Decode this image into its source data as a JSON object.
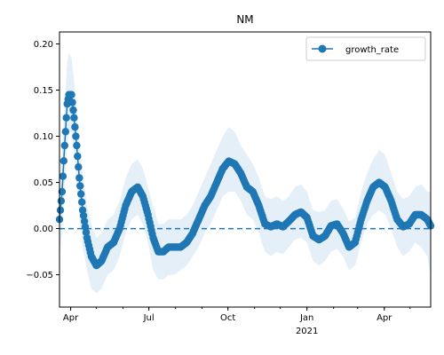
{
  "chart_data": {
    "type": "line",
    "title": "NM",
    "xlabel": "",
    "ylabel": "",
    "x_range": [
      "2020-03-19",
      "2021-05-25"
    ],
    "ylim": [
      -0.085,
      0.213
    ],
    "y_ticks": [
      -0.05,
      0.0,
      0.05,
      0.1,
      0.15,
      0.2
    ],
    "y_tick_labels": [
      "−0.05",
      "0.00",
      "0.05",
      "0.10",
      "0.15",
      "0.20"
    ],
    "x_major_ticks": [
      {
        "date": "2020-04-01",
        "label": "Apr"
      },
      {
        "date": "2020-07-01",
        "label": "Jul"
      },
      {
        "date": "2020-10-01",
        "label": "Oct"
      },
      {
        "date": "2021-01-01",
        "label": "Jan"
      },
      {
        "date": "2021-04-01",
        "label": "Apr"
      }
    ],
    "x_year_label": {
      "date": "2021-01-01",
      "label": "2021"
    },
    "reference_line": {
      "y": 0.0,
      "style": "dashed",
      "color": "#1f77b4"
    },
    "legend": {
      "position": "top-right",
      "entries": [
        "growth_rate"
      ]
    },
    "grid": false,
    "colors": {
      "line": "#1f77b4",
      "band": "#dce9f5"
    },
    "series": [
      {
        "name": "growth_rate",
        "x": [
          "2020-03-19",
          "2020-03-22",
          "2020-03-25",
          "2020-03-28",
          "2020-03-30",
          "2020-04-02",
          "2020-04-05",
          "2020-04-08",
          "2020-04-11",
          "2020-04-15",
          "2020-04-20",
          "2020-04-25",
          "2020-05-01",
          "2020-05-07",
          "2020-05-14",
          "2020-05-21",
          "2020-05-28",
          "2020-06-04",
          "2020-06-11",
          "2020-06-18",
          "2020-06-24",
          "2020-06-30",
          "2020-07-06",
          "2020-07-12",
          "2020-07-18",
          "2020-07-24",
          "2020-07-31",
          "2020-08-07",
          "2020-08-14",
          "2020-08-21",
          "2020-08-28",
          "2020-09-04",
          "2020-09-11",
          "2020-09-18",
          "2020-09-25",
          "2020-10-02",
          "2020-10-09",
          "2020-10-16",
          "2020-10-23",
          "2020-10-30",
          "2020-11-06",
          "2020-11-13",
          "2020-11-20",
          "2020-11-27",
          "2020-12-04",
          "2020-12-11",
          "2020-12-18",
          "2020-12-25",
          "2021-01-01",
          "2021-01-08",
          "2021-01-15",
          "2021-01-22",
          "2021-01-29",
          "2021-02-05",
          "2021-02-12",
          "2021-02-19",
          "2021-02-26",
          "2021-03-05",
          "2021-03-12",
          "2021-03-19",
          "2021-03-26",
          "2021-04-02",
          "2021-04-09",
          "2021-04-16",
          "2021-04-23",
          "2021-04-30",
          "2021-05-07",
          "2021-05-14",
          "2021-05-21",
          "2021-05-25"
        ],
        "y": [
          0.01,
          0.04,
          0.09,
          0.135,
          0.145,
          0.145,
          0.12,
          0.09,
          0.055,
          0.02,
          -0.01,
          -0.03,
          -0.04,
          -0.035,
          -0.02,
          -0.015,
          0.0,
          0.025,
          0.04,
          0.045,
          0.035,
          0.015,
          -0.01,
          -0.025,
          -0.025,
          -0.02,
          -0.02,
          -0.02,
          -0.015,
          -0.005,
          0.01,
          0.025,
          0.035,
          0.05,
          0.065,
          0.073,
          0.07,
          0.06,
          0.045,
          0.04,
          0.025,
          0.005,
          0.002,
          0.005,
          0.002,
          0.008,
          0.015,
          0.018,
          0.012,
          -0.008,
          -0.012,
          -0.008,
          0.003,
          0.005,
          -0.005,
          -0.02,
          -0.015,
          0.01,
          0.03,
          0.045,
          0.05,
          0.045,
          0.03,
          0.01,
          0.002,
          0.005,
          0.015,
          0.015,
          0.01,
          0.003
        ],
        "ci_lower": [
          -0.03,
          -0.005,
          0.045,
          0.09,
          0.105,
          0.105,
          0.085,
          0.05,
          0.015,
          -0.02,
          -0.045,
          -0.065,
          -0.07,
          -0.065,
          -0.05,
          -0.045,
          -0.03,
          -0.005,
          0.01,
          0.015,
          0.005,
          -0.015,
          -0.045,
          -0.055,
          -0.055,
          -0.05,
          -0.05,
          -0.045,
          -0.04,
          -0.03,
          -0.02,
          -0.005,
          0.005,
          0.02,
          0.035,
          0.04,
          0.04,
          0.03,
          0.015,
          0.01,
          -0.005,
          -0.025,
          -0.03,
          -0.025,
          -0.028,
          -0.02,
          -0.012,
          -0.01,
          -0.015,
          -0.035,
          -0.04,
          -0.035,
          -0.025,
          -0.022,
          -0.03,
          -0.045,
          -0.04,
          -0.015,
          0.005,
          0.015,
          0.02,
          0.015,
          0.0,
          -0.02,
          -0.03,
          -0.025,
          -0.015,
          -0.02,
          -0.03,
          -0.05
        ],
        "ci_upper": [
          0.05,
          0.085,
          0.135,
          0.18,
          0.19,
          0.185,
          0.16,
          0.13,
          0.095,
          0.06,
          0.025,
          0.005,
          -0.01,
          -0.005,
          0.01,
          0.015,
          0.03,
          0.055,
          0.07,
          0.075,
          0.065,
          0.045,
          0.025,
          0.005,
          0.005,
          0.01,
          0.01,
          0.01,
          0.015,
          0.025,
          0.04,
          0.055,
          0.07,
          0.085,
          0.1,
          0.11,
          0.105,
          0.09,
          0.08,
          0.07,
          0.055,
          0.035,
          0.032,
          0.035,
          0.03,
          0.035,
          0.045,
          0.048,
          0.04,
          0.02,
          0.018,
          0.02,
          0.03,
          0.032,
          0.022,
          0.008,
          0.012,
          0.04,
          0.06,
          0.075,
          0.085,
          0.08,
          0.06,
          0.04,
          0.032,
          0.035,
          0.045,
          0.048,
          0.04,
          0.04
        ]
      }
    ]
  }
}
